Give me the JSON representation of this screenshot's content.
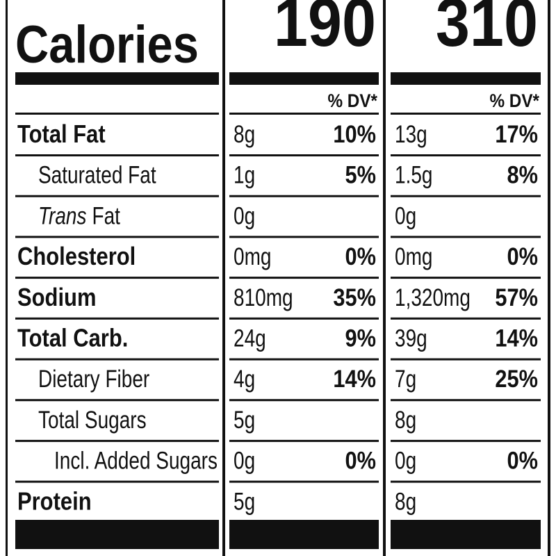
{
  "calories": {
    "label": "Calories",
    "values": [
      "190",
      "310"
    ]
  },
  "dv_header": [
    "% DV*",
    "% DV*"
  ],
  "rows": [
    {
      "label": "Total Fat",
      "style": "bold",
      "cols": [
        {
          "amount": "8g",
          "dv": "10%"
        },
        {
          "amount": "13g",
          "dv": "17%"
        }
      ]
    },
    {
      "label": "Saturated Fat",
      "style": "sub",
      "cols": [
        {
          "amount": "1g",
          "dv": "5%"
        },
        {
          "amount": "1.5g",
          "dv": "8%"
        }
      ]
    },
    {
      "label": {
        "italic": "Trans",
        "text": "Fat"
      },
      "style": "sub",
      "cols": [
        {
          "amount": "0g"
        },
        {
          "amount": "0g"
        }
      ]
    },
    {
      "label": "Cholesterol",
      "style": "bold",
      "cols": [
        {
          "amount": "0mg",
          "dv": "0%"
        },
        {
          "amount": "0mg",
          "dv": "0%"
        }
      ]
    },
    {
      "label": "Sodium",
      "style": "bold",
      "cols": [
        {
          "amount": "810mg",
          "dv": "35%"
        },
        {
          "amount": "1,320mg",
          "dv": "57%"
        }
      ]
    },
    {
      "label": "Total Carb.",
      "style": "bold",
      "cols": [
        {
          "amount": "24g",
          "dv": "9%"
        },
        {
          "amount": "39g",
          "dv": "14%"
        }
      ]
    },
    {
      "label": "Dietary Fiber",
      "style": "sub",
      "cols": [
        {
          "amount": "4g",
          "dv": "14%"
        },
        {
          "amount": "7g",
          "dv": "25%"
        }
      ]
    },
    {
      "label": "Total Sugars",
      "style": "sub",
      "cols": [
        {
          "amount": "5g"
        },
        {
          "amount": "8g"
        }
      ]
    },
    {
      "label": "Incl. Added Sugars",
      "style": "subsub",
      "cols": [
        {
          "amount": "0g",
          "dv": "0%"
        },
        {
          "amount": "0g",
          "dv": "0%"
        }
      ]
    },
    {
      "label": "Protein",
      "style": "bold",
      "cols": [
        {
          "amount": "5g"
        },
        {
          "amount": "8g"
        }
      ]
    }
  ]
}
